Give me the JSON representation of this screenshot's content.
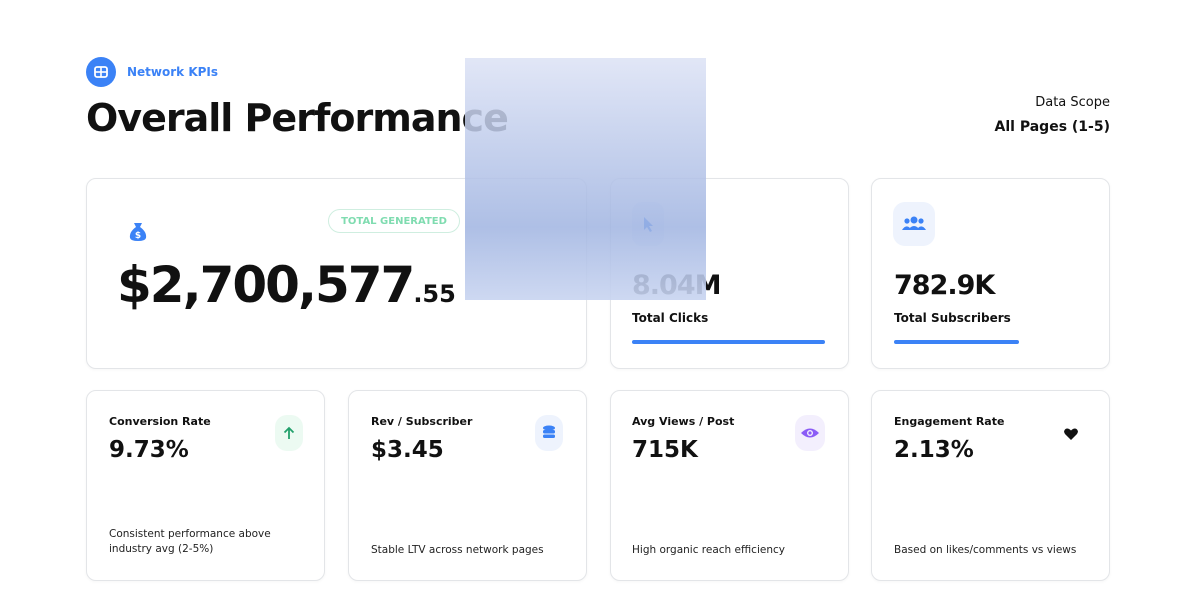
{
  "header": {
    "badge": "Network KPIs",
    "title": "Overall Performance",
    "scope_label": "Data Scope",
    "scope_value": "All Pages (1-5)"
  },
  "hero": {
    "tag": "TOTAL GENERATED",
    "amount": "$2,700,577",
    "cents": ".55"
  },
  "stats": [
    {
      "value": "8.04M",
      "label": "Total Clicks",
      "progress": 100
    },
    {
      "value": "782.9K",
      "label": "Total Subscribers",
      "progress": 65
    }
  ],
  "kpis": [
    {
      "label": "Conversion Rate",
      "value": "9.73%",
      "note": "Consistent performance above industry avg (2-5%)"
    },
    {
      "label": "Rev / Subscriber",
      "value": "$3.45",
      "note": "Stable LTV across network pages"
    },
    {
      "label": "Avg Views / Post",
      "value": "715K",
      "note": "High organic reach efficiency"
    },
    {
      "label": "Engagement Rate",
      "value": "2.13%",
      "note": "Based on likes/comments vs views"
    }
  ]
}
